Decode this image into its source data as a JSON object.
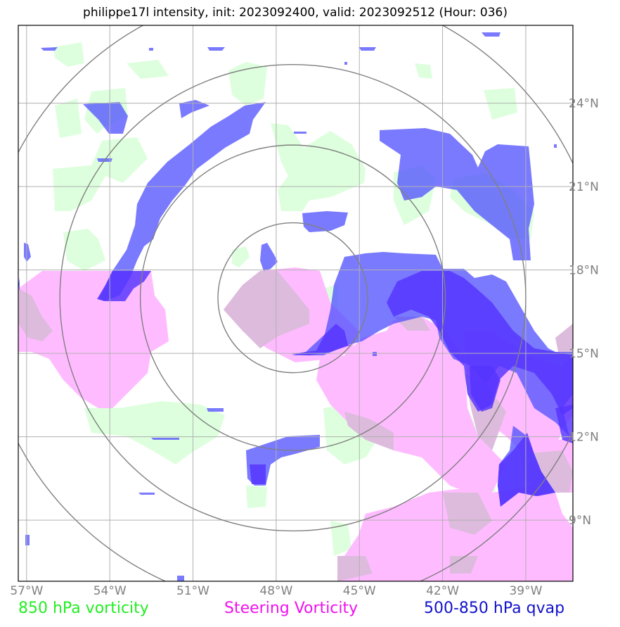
{
  "title": "philippe17l intensity, init: 2023092400, valid: 2023092512 (Hour: 036)",
  "axes": {
    "lon_labels": [
      "57°W",
      "54°W",
      "51°W",
      "48°W",
      "45°W",
      "42°W",
      "39°W"
    ],
    "lat_labels": [
      "24°N",
      "21°N",
      "18°N",
      "15°N",
      "12°N",
      "9°N"
    ],
    "lon_range": [
      -57.3,
      -37.3
    ],
    "lat_range": [
      6.8,
      26.8
    ],
    "gridlines": true
  },
  "storm_center": {
    "lon": -47.4,
    "lat": 17.0
  },
  "range_rings_deg": [
    2.7,
    5.5,
    8.4,
    11.2
  ],
  "legend": {
    "lowlevel": {
      "label": "850 hPa vorticity",
      "color": "#22ee22"
    },
    "steering": {
      "label": "Steering Vorticity",
      "color": "#ee11ee"
    },
    "qvap": {
      "label": "500-850 hPa qvap",
      "color": "#1111cc"
    }
  },
  "fills": {
    "lowlevel_color": "#ddffdd",
    "steering_color": "#ffbbff",
    "qvap_color": "#5555ff",
    "qvap_strong_color": "#5533ff"
  }
}
